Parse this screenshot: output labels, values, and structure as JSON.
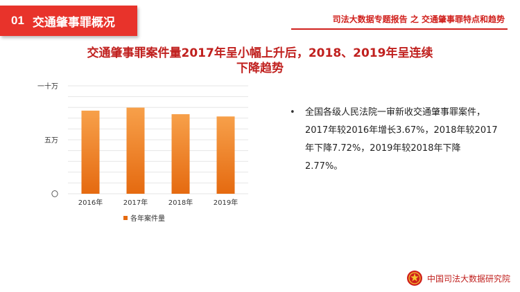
{
  "header": {
    "section_number": "01",
    "section_title": "交通肇事罪概况",
    "report_title": "司法大数据专题报告 之 交通肇事罪特点和趋势"
  },
  "main": {
    "title_line1": "交通肇事罪案件量2017年呈小幅上升后，2018、2019年呈连续",
    "title_line2": "下降趋势"
  },
  "bullets": [
    "全国各级人民法院一审新收交通肇事罪案件，2017年较2016年增长3.67%，2018年较2017年下降7.72%，2019年较2018年下降2.77%。"
  ],
  "footer": {
    "org_name": "中国司法大数据研究院"
  },
  "colors": {
    "accent": "#e8332b",
    "bar_top": "#f7a04a",
    "bar_bottom": "#e56a10"
  },
  "icons": {
    "emblem": "court-emblem-icon"
  },
  "chart_data": {
    "type": "bar",
    "categories": [
      "2016年",
      "2017年",
      "2018年",
      "2019年"
    ],
    "series": [
      {
        "name": "各年案件量",
        "values": [
          77000,
          79800,
          73700,
          71600
        ]
      }
    ],
    "ylim": [
      0,
      100000
    ],
    "yticks": [
      {
        "value": 0,
        "label": "〇"
      },
      {
        "value": 50000,
        "label": "五万"
      },
      {
        "value": 100000,
        "label": "一十万"
      }
    ],
    "grid": true,
    "legend_position": "bottom-left"
  }
}
